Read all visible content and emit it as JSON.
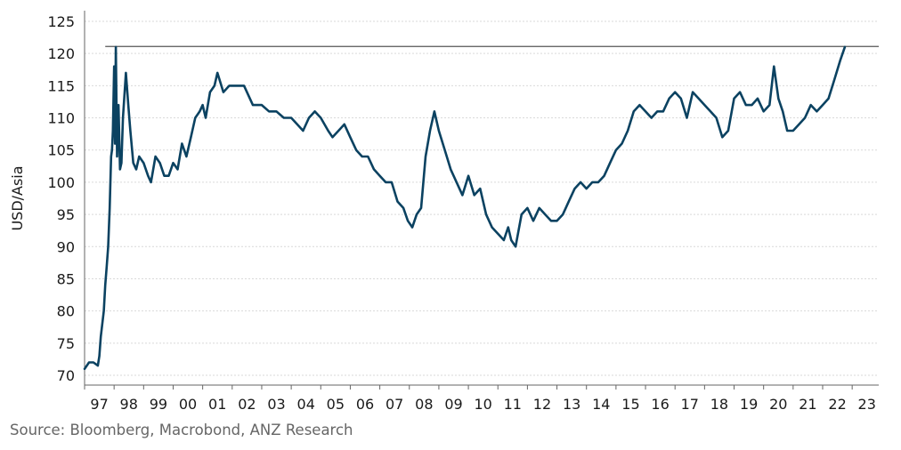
{
  "source": "Source: Bloomberg, Macrobond, ANZ Research",
  "colors": {
    "series": "#0b4261",
    "reference_line": "#555555",
    "grid": "#d9d9d9",
    "axis": "#666666"
  },
  "chart_data": {
    "type": "line",
    "title": "",
    "xlabel": "",
    "ylabel": "USD/Asia",
    "xlim": [
      1997.0,
      2023.9
    ],
    "ylim": [
      70,
      125
    ],
    "yticks": [
      70,
      75,
      80,
      85,
      90,
      95,
      100,
      105,
      110,
      115,
      120,
      125
    ],
    "xtick_labels": [
      "97",
      "98",
      "99",
      "00",
      "01",
      "02",
      "03",
      "04",
      "05",
      "06",
      "07",
      "08",
      "09",
      "10",
      "11",
      "12",
      "13",
      "14",
      "15",
      "16",
      "17",
      "18",
      "19",
      "20",
      "21",
      "22",
      "23"
    ],
    "grid": {
      "horizontal": true,
      "vertical": false,
      "style": "dotted"
    },
    "legend": "none",
    "reference_line": {
      "y": 121.1,
      "x_start": 1997.7,
      "x_end": 2023.9
    },
    "series": [
      {
        "x": [
          1997.0,
          1997.15,
          1997.3,
          1997.45,
          1997.5,
          1997.55,
          1997.65,
          1997.7,
          1997.75,
          1997.8,
          1997.85,
          1997.9,
          1997.93,
          1997.96,
          1998.0,
          1998.03,
          1998.06,
          1998.1,
          1998.15,
          1998.2,
          1998.25,
          1998.3,
          1998.4,
          1998.48,
          1998.55,
          1998.65,
          1998.75,
          1998.85,
          1999.0,
          1999.15,
          1999.25,
          1999.4,
          1999.55,
          1999.7,
          1999.85,
          2000.0,
          2000.15,
          2000.3,
          2000.45,
          2000.6,
          2000.75,
          2000.9,
          2001.0,
          2001.1,
          2001.25,
          2001.4,
          2001.5,
          2001.7,
          2001.9,
          2002.1,
          2002.4,
          2002.7,
          2003.0,
          2003.25,
          2003.5,
          2003.75,
          2004.0,
          2004.2,
          2004.4,
          2004.6,
          2004.8,
          2005.0,
          2005.25,
          2005.4,
          2005.6,
          2005.8,
          2006.0,
          2006.2,
          2006.4,
          2006.6,
          2006.8,
          2007.0,
          2007.2,
          2007.4,
          2007.6,
          2007.8,
          2007.95,
          2008.1,
          2008.25,
          2008.4,
          2008.55,
          2008.7,
          2008.85,
          2009.0,
          2009.2,
          2009.4,
          2009.6,
          2009.8,
          2010.0,
          2010.2,
          2010.4,
          2010.6,
          2010.8,
          2011.0,
          2011.2,
          2011.35,
          2011.45,
          2011.6,
          2011.8,
          2012.0,
          2012.2,
          2012.4,
          2012.6,
          2012.8,
          2013.0,
          2013.2,
          2013.4,
          2013.6,
          2013.8,
          2014.0,
          2014.2,
          2014.4,
          2014.6,
          2014.8,
          2015.0,
          2015.2,
          2015.4,
          2015.6,
          2015.8,
          2016.0,
          2016.2,
          2016.4,
          2016.6,
          2016.8,
          2017.0,
          2017.2,
          2017.4,
          2017.6,
          2017.8,
          2018.0,
          2018.2,
          2018.4,
          2018.6,
          2018.8,
          2019.0,
          2019.2,
          2019.4,
          2019.6,
          2019.8,
          2020.0,
          2020.2,
          2020.35,
          2020.5,
          2020.65,
          2020.8,
          2021.0,
          2021.2,
          2021.4,
          2021.6,
          2021.8,
          2022.0,
          2022.2,
          2022.4,
          2022.6,
          2022.75
        ],
        "y": [
          71,
          72,
          72,
          71.5,
          73,
          76,
          80,
          84,
          87,
          90,
          96,
          104,
          105,
          108,
          118,
          106,
          121,
          104,
          112,
          102,
          103,
          110,
          117,
          112,
          108,
          103,
          102,
          104,
          103,
          101,
          100,
          104,
          103,
          101,
          101,
          103,
          102,
          106,
          104,
          107,
          110,
          111,
          112,
          110,
          114,
          115,
          117,
          114,
          115,
          115,
          115,
          112,
          112,
          111,
          111,
          110,
          110,
          109,
          108,
          110,
          111,
          110,
          108,
          107,
          108,
          109,
          107,
          105,
          104,
          104,
          102,
          101,
          100,
          100,
          97,
          96,
          94,
          93,
          95,
          96,
          104,
          108,
          111,
          108,
          105,
          102,
          100,
          98,
          101,
          98,
          99,
          95,
          93,
          92,
          91,
          93,
          91,
          90,
          95,
          96,
          94,
          96,
          95,
          94,
          94,
          95,
          97,
          99,
          100,
          99,
          100,
          100,
          101,
          103,
          105,
          106,
          108,
          111,
          112,
          111,
          110,
          111,
          111,
          113,
          114,
          113,
          110,
          114,
          113,
          112,
          111,
          110,
          107,
          108,
          113,
          114,
          112,
          112,
          113,
          111,
          112,
          118,
          113,
          111,
          108,
          108,
          109,
          110,
          112,
          111,
          112,
          113,
          116,
          119,
          121
        ]
      }
    ]
  }
}
